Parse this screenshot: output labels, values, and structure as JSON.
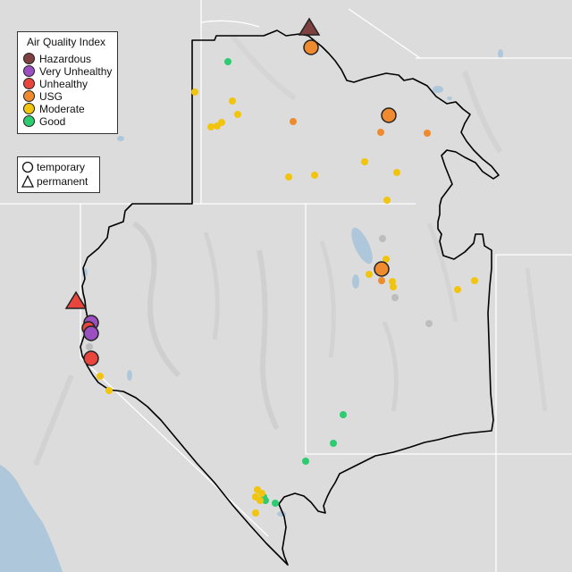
{
  "legend": {
    "title": "Air Quality Index",
    "categories": [
      {
        "label": "Hazardous",
        "color": "#7e4040"
      },
      {
        "label": "Very Unhealthy",
        "color": "#9b4fc0"
      },
      {
        "label": "Unhealthy",
        "color": "#e8463c"
      },
      {
        "label": "USG",
        "color": "#ef8a2e"
      },
      {
        "label": "Moderate",
        "color": "#f1c40f"
      },
      {
        "label": "Good",
        "color": "#2ecc71"
      }
    ],
    "types": [
      {
        "label": "temporary",
        "icon": "circle-icon"
      },
      {
        "label": "permanent",
        "icon": "triangle-icon"
      }
    ]
  },
  "colors": {
    "land": "#dcdcdc",
    "water": "#aec7da",
    "boundary": "#000000",
    "state_line": "#ffffff",
    "missing": "#bdbdbd"
  }
}
